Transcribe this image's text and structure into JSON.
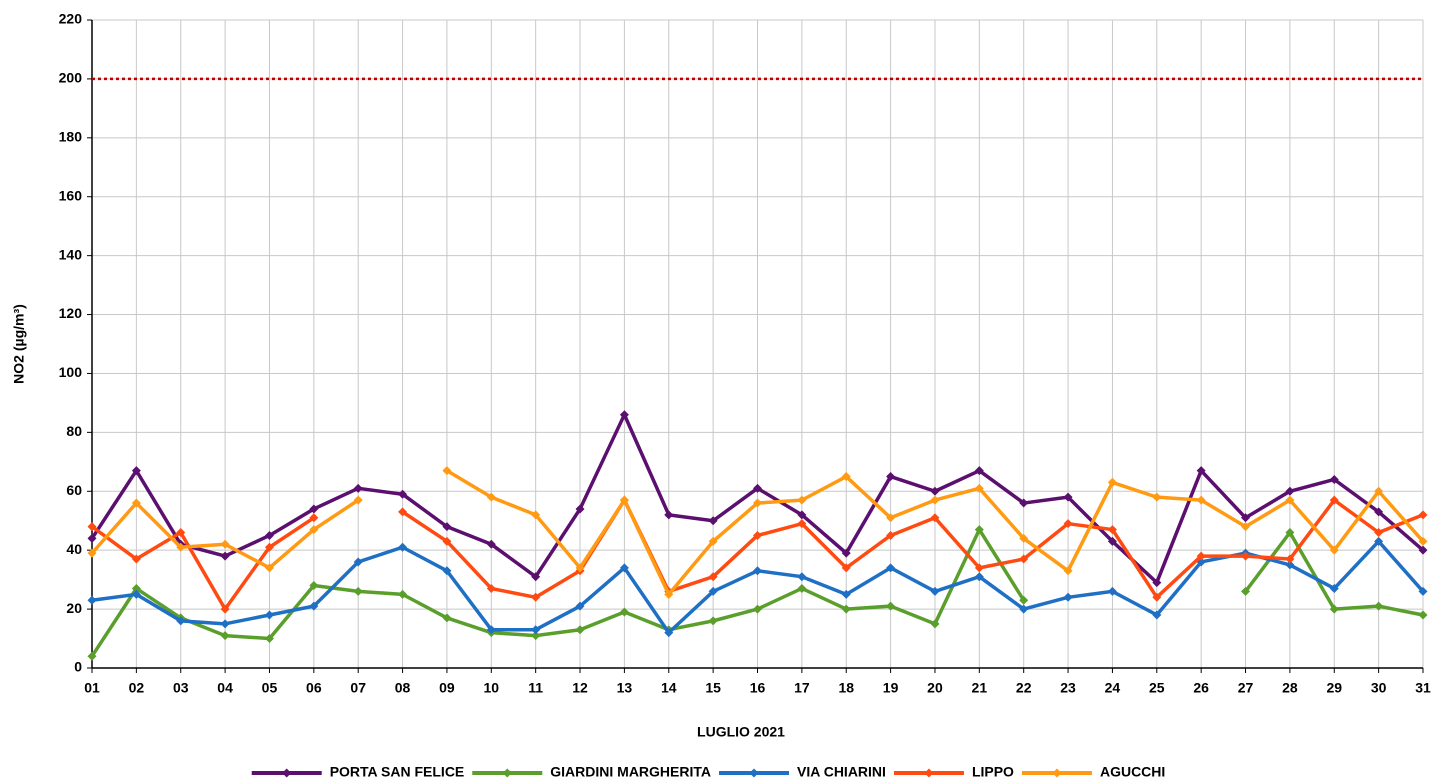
{
  "chart_data": {
    "type": "line",
    "x_label": "LUGLIO 2021",
    "y_label": "NO2 (µg/m³)",
    "categories": [
      "01",
      "02",
      "03",
      "04",
      "05",
      "06",
      "07",
      "08",
      "09",
      "10",
      "11",
      "12",
      "13",
      "14",
      "15",
      "16",
      "17",
      "18",
      "19",
      "20",
      "21",
      "22",
      "23",
      "24",
      "25",
      "26",
      "27",
      "28",
      "29",
      "30",
      "31"
    ],
    "ylim": [
      0,
      220
    ],
    "yticks": [
      0,
      20,
      40,
      60,
      80,
      100,
      120,
      140,
      160,
      180,
      200,
      220
    ],
    "grid": true,
    "legend": "bottom",
    "limit_line": {
      "value": 200,
      "color": "#c00000"
    },
    "series": [
      {
        "name": "PORTA SAN FELICE",
        "color": "#5b0f6e",
        "values": [
          44,
          67,
          42,
          38,
          45,
          54,
          61,
          59,
          48,
          42,
          31,
          54,
          86,
          52,
          50,
          61,
          52,
          39,
          65,
          60,
          67,
          56,
          58,
          43,
          29,
          67,
          51,
          60,
          64,
          53,
          40
        ]
      },
      {
        "name": "GIARDINI MARGHERITA",
        "color": "#5a9e2c",
        "values": [
          4,
          27,
          17,
          11,
          10,
          28,
          26,
          25,
          17,
          12,
          11,
          13,
          19,
          13,
          16,
          20,
          27,
          20,
          21,
          15,
          47,
          23,
          null,
          null,
          null,
          null,
          26,
          46,
          20,
          21,
          18
        ]
      },
      {
        "name": "VIA CHIARINI",
        "color": "#1f6fc5",
        "values": [
          23,
          25,
          16,
          15,
          18,
          21,
          36,
          41,
          33,
          13,
          13,
          21,
          34,
          12,
          26,
          33,
          31,
          25,
          34,
          26,
          31,
          20,
          24,
          26,
          18,
          36,
          39,
          35,
          27,
          43,
          26
        ]
      },
      {
        "name": "LIPPO",
        "color": "#ff4b12",
        "values": [
          48,
          37,
          46,
          20,
          41,
          51,
          null,
          53,
          43,
          27,
          24,
          33,
          57,
          26,
          31,
          45,
          49,
          34,
          45,
          51,
          34,
          37,
          49,
          47,
          24,
          38,
          38,
          37,
          57,
          46,
          52
        ]
      },
      {
        "name": "AGUCCHI",
        "color": "#ff9a12",
        "values": [
          39,
          56,
          41,
          42,
          34,
          47,
          57,
          null,
          67,
          58,
          52,
          34,
          57,
          25,
          43,
          56,
          57,
          65,
          51,
          57,
          61,
          44,
          33,
          63,
          58,
          57,
          48,
          57,
          40,
          60,
          43
        ]
      }
    ]
  }
}
